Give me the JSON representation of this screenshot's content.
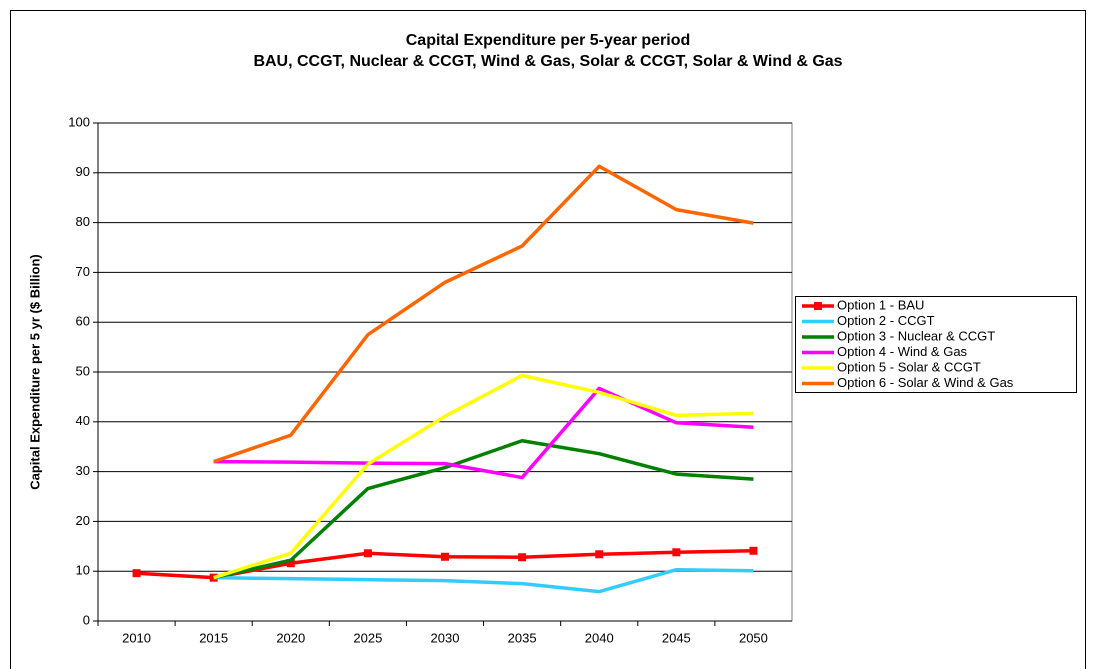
{
  "chart_data": {
    "type": "line",
    "title": "Capital Expenditure per 5-year period",
    "subtitle": "BAU, CCGT, Nuclear & CCGT, Wind & Gas, Solar & CCGT, Solar & Wind & Gas",
    "y_label": "Capital Expenditure per 5 yr ($ Billion)",
    "categories": [
      "2010",
      "2015",
      "2020",
      "2025",
      "2030",
      "2035",
      "2040",
      "2045",
      "2050"
    ],
    "ylim": [
      0,
      100
    ],
    "yticks": [
      0,
      10,
      20,
      30,
      40,
      50,
      60,
      70,
      80,
      90,
      100
    ],
    "grid": true,
    "legend": "right",
    "series": [
      {
        "name": "Option 1 - BAU",
        "color": "#ff0000",
        "marker": "square",
        "values": [
          9.6,
          8.7,
          11.6,
          13.6,
          12.9,
          12.8,
          13.4,
          13.8,
          14.1
        ]
      },
      {
        "name": "Option 2 - CCGT",
        "color": "#33ccff",
        "values": [
          null,
          8.7,
          8.5,
          8.3,
          8.1,
          7.5,
          5.9,
          10.3,
          10.1
        ]
      },
      {
        "name": "Option 3 - Nuclear & CCGT",
        "color": "#008000",
        "values": [
          null,
          8.7,
          12.2,
          26.6,
          30.8,
          36.2,
          33.6,
          29.5,
          28.5
        ]
      },
      {
        "name": "Option 4 - Wind & Gas",
        "color": "#ff00ff",
        "values": [
          null,
          32.0,
          31.9,
          31.7,
          31.6,
          28.8,
          46.7,
          39.8,
          38.9
        ]
      },
      {
        "name": "Option 5 - Solar & CCGT",
        "color": "#ffff00",
        "values": [
          null,
          8.7,
          13.6,
          31.5,
          41.1,
          49.3,
          45.9,
          41.3,
          41.7
        ]
      },
      {
        "name": "Option 6 - Solar & Wind & Gas",
        "color": "#ff6600",
        "values": [
          null,
          32.0,
          37.3,
          57.5,
          68.0,
          75.3,
          91.3,
          82.6,
          79.9
        ]
      }
    ]
  }
}
